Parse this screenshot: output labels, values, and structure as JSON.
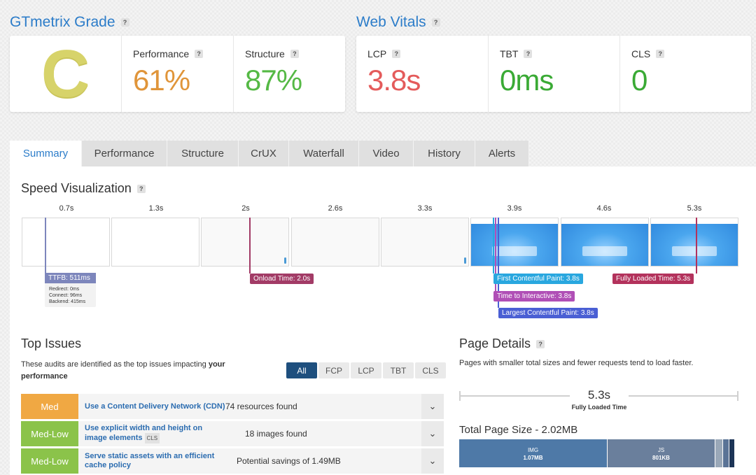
{
  "grade": {
    "title": "GTmetrix Grade",
    "letter": "C",
    "performance_label": "Performance",
    "performance_value": "61%",
    "structure_label": "Structure",
    "structure_value": "87%"
  },
  "vitals": {
    "title": "Web Vitals",
    "lcp_label": "LCP",
    "lcp_value": "3.8s",
    "tbt_label": "TBT",
    "tbt_value": "0ms",
    "cls_label": "CLS",
    "cls_value": "0"
  },
  "help_glyph": "?",
  "tabs": [
    "Summary",
    "Performance",
    "Structure",
    "CrUX",
    "Waterfall",
    "Video",
    "History",
    "Alerts"
  ],
  "speed": {
    "title": "Speed Visualization",
    "times": [
      "0.7s",
      "1.3s",
      "2s",
      "2.6s",
      "3.3s",
      "3.9s",
      "4.6s",
      "5.3s"
    ],
    "ttfb": {
      "label": "TTFB: 511ms",
      "redirect": "Redirect: 0ms",
      "connect": "Connect: 96ms",
      "backend": "Backend: 415ms"
    },
    "markers": {
      "onload": "Onload Time: 2.0s",
      "fcp": "First Contentful Paint: 3.8s",
      "tti": "Time to Interactive: 3.8s",
      "lcp": "Largest Contentful Paint: 3.8s",
      "fully_loaded": "Fully Loaded Time: 5.3s"
    }
  },
  "issues": {
    "title": "Top Issues",
    "desc_normal": "These audits are identified as the top issues impacting ",
    "desc_bold1": "your",
    "desc_bold2": "performance",
    "filters": [
      "All",
      "FCP",
      "LCP",
      "TBT",
      "CLS"
    ],
    "rows": [
      {
        "severity": "Med",
        "title": "Use a Content Delivery Network (CDN)",
        "tag": "",
        "found": "74 resources found",
        "color": "#f0a843"
      },
      {
        "severity": "Med-Low",
        "title": "Use explicit width and height on image elements",
        "tag": "CLS",
        "found": "18 images found",
        "color": "#8bc34a"
      },
      {
        "severity": "Med-Low",
        "title": "Serve static assets with an efficient cache policy",
        "tag": "",
        "found": "Potential savings of 1.49MB",
        "color": "#8bc34a"
      }
    ]
  },
  "page_details": {
    "title": "Page Details",
    "desc": "Pages with smaller total sizes and fewer requests tend to load faster.",
    "fully_loaded_value": "5.3s",
    "fully_loaded_label": "Fully Loaded Time",
    "total_size_title": "Total Page Size - 2.02MB",
    "img_label": "IMG",
    "img_value": "1.07MB",
    "js_label": "JS",
    "js_value": "801KB"
  },
  "colors": {
    "performance": "#e0953a",
    "structure": "#55b945",
    "lcp": "#e45b5b",
    "tbt": "#3aaa35",
    "cls": "#3aaa35",
    "ttfb": "#7d86bc",
    "onload": "#a23b66",
    "fcp": "#29a7df",
    "tti": "#b04fb6",
    "lcp_marker": "#4a5fd4",
    "fully_loaded": "#b3325c"
  }
}
